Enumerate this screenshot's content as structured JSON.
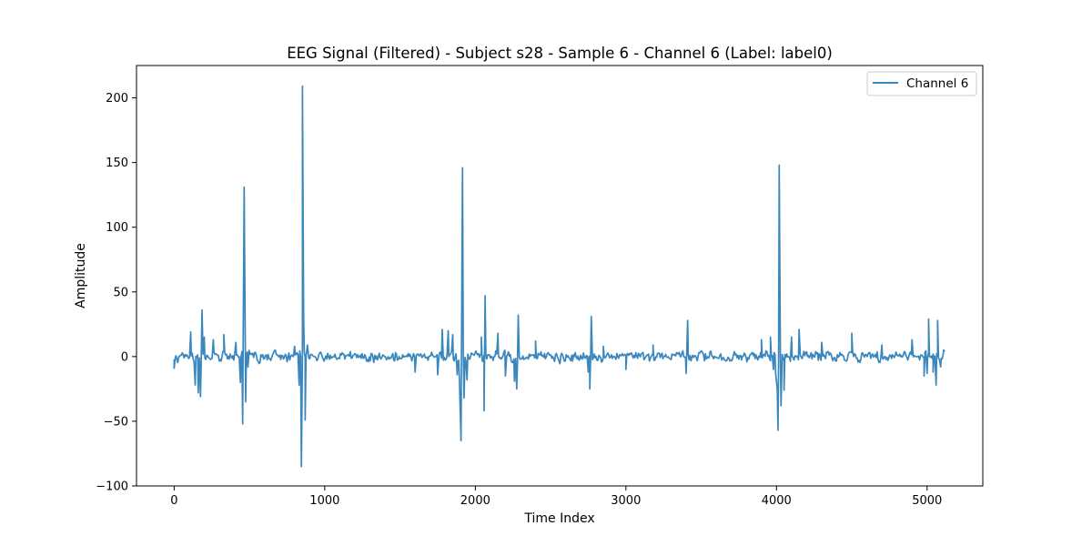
{
  "chart_data": {
    "type": "line",
    "title": "EEG Signal (Filtered) - Subject s28 - Sample 6 - Channel 6 (Label: label0)",
    "xlabel": "Time Index",
    "ylabel": "Amplitude",
    "xlim": [
      -250,
      5370
    ],
    "ylim": [
      -100,
      225
    ],
    "xticks": [
      0,
      1000,
      2000,
      3000,
      4000,
      5000
    ],
    "xtick_labels": [
      "0",
      "1000",
      "2000",
      "3000",
      "4000",
      "5000"
    ],
    "yticks": [
      -100,
      -50,
      0,
      50,
      100,
      150,
      200
    ],
    "ytick_labels": [
      "−100",
      "−50",
      "0",
      "50",
      "100",
      "150",
      "200"
    ],
    "grid": false,
    "legend_position": "top-right",
    "color": "#3a87bd",
    "series": [
      {
        "name": "Channel 6",
        "n_points": 5120,
        "baseline_noise_amplitude": 4,
        "events": [
          {
            "x": 0,
            "y": -9
          },
          {
            "x": 110,
            "y": 19
          },
          {
            "x": 140,
            "y": -22
          },
          {
            "x": 160,
            "y": -28
          },
          {
            "x": 175,
            "y": -31
          },
          {
            "x": 185,
            "y": 36
          },
          {
            "x": 200,
            "y": 15
          },
          {
            "x": 260,
            "y": 13
          },
          {
            "x": 330,
            "y": 17
          },
          {
            "x": 410,
            "y": 11
          },
          {
            "x": 440,
            "y": -20
          },
          {
            "x": 455,
            "y": -52
          },
          {
            "x": 465,
            "y": 131
          },
          {
            "x": 475,
            "y": -35
          },
          {
            "x": 490,
            "y": -8
          },
          {
            "x": 800,
            "y": 8
          },
          {
            "x": 830,
            "y": -22
          },
          {
            "x": 845,
            "y": -85
          },
          {
            "x": 852,
            "y": 209
          },
          {
            "x": 860,
            "y": 30
          },
          {
            "x": 870,
            "y": -49
          },
          {
            "x": 885,
            "y": 9
          },
          {
            "x": 1600,
            "y": -12
          },
          {
            "x": 1750,
            "y": -14
          },
          {
            "x": 1780,
            "y": 21
          },
          {
            "x": 1820,
            "y": 20
          },
          {
            "x": 1850,
            "y": 17
          },
          {
            "x": 1880,
            "y": -14
          },
          {
            "x": 1895,
            "y": -20
          },
          {
            "x": 1905,
            "y": -65
          },
          {
            "x": 1915,
            "y": 146
          },
          {
            "x": 1925,
            "y": -32
          },
          {
            "x": 1945,
            "y": -18
          },
          {
            "x": 2040,
            "y": 15
          },
          {
            "x": 2058,
            "y": -42
          },
          {
            "x": 2065,
            "y": 47
          },
          {
            "x": 2150,
            "y": 18
          },
          {
            "x": 2200,
            "y": -15
          },
          {
            "x": 2260,
            "y": -19
          },
          {
            "x": 2275,
            "y": -25
          },
          {
            "x": 2285,
            "y": 32
          },
          {
            "x": 2400,
            "y": 12
          },
          {
            "x": 2750,
            "y": -12
          },
          {
            "x": 2760,
            "y": -25
          },
          {
            "x": 2770,
            "y": 31
          },
          {
            "x": 2850,
            "y": 8
          },
          {
            "x": 3000,
            "y": -10
          },
          {
            "x": 3180,
            "y": 9
          },
          {
            "x": 3400,
            "y": -13
          },
          {
            "x": 3410,
            "y": 28
          },
          {
            "x": 3900,
            "y": 13
          },
          {
            "x": 3960,
            "y": 15
          },
          {
            "x": 3980,
            "y": -10
          },
          {
            "x": 3995,
            "y": -14
          },
          {
            "x": 4005,
            "y": -25
          },
          {
            "x": 4010,
            "y": -57
          },
          {
            "x": 4018,
            "y": 148
          },
          {
            "x": 4030,
            "y": -38
          },
          {
            "x": 4050,
            "y": -26
          },
          {
            "x": 4100,
            "y": 15
          },
          {
            "x": 4150,
            "y": 21
          },
          {
            "x": 4300,
            "y": 11
          },
          {
            "x": 4500,
            "y": 18
          },
          {
            "x": 4700,
            "y": 9
          },
          {
            "x": 4900,
            "y": 13
          },
          {
            "x": 4980,
            "y": -15
          },
          {
            "x": 5000,
            "y": -13
          },
          {
            "x": 5010,
            "y": 29
          },
          {
            "x": 5040,
            "y": -12
          },
          {
            "x": 5060,
            "y": -22
          },
          {
            "x": 5070,
            "y": 28
          },
          {
            "x": 5090,
            "y": -8
          },
          {
            "x": 5110,
            "y": 5
          }
        ]
      }
    ]
  }
}
